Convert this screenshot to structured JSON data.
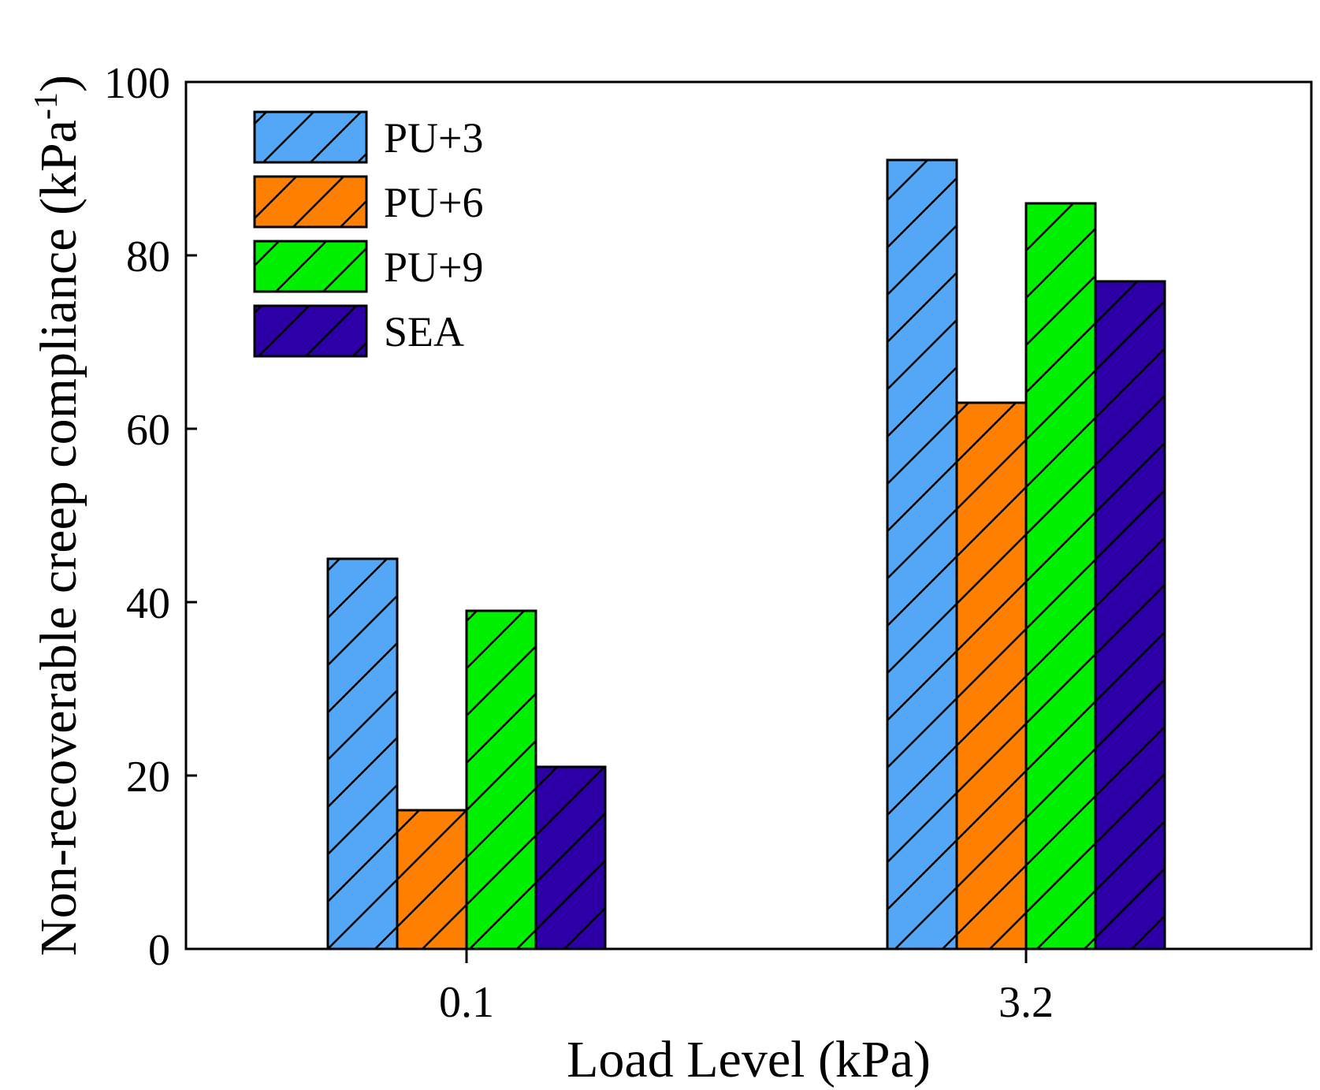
{
  "chart_data": {
    "type": "bar",
    "categories": [
      "0.1",
      "3.2"
    ],
    "series": [
      {
        "name": "PU+3",
        "values": [
          45,
          91
        ],
        "color": "#54a6f7"
      },
      {
        "name": "PU+6",
        "values": [
          16,
          63
        ],
        "color": "#ff8000"
      },
      {
        "name": "PU+9",
        "values": [
          39,
          86
        ],
        "color": "#00f000"
      },
      {
        "name": "SEA",
        "values": [
          21,
          77
        ],
        "color": "#2c00a6"
      }
    ],
    "title": "",
    "xlabel": "Load Level (kPa)",
    "ylabel": "Non-recoverable creep compliance (kPa",
    "ylabel_superscript": "-1",
    "ylabel_close": ")",
    "ylim": [
      0,
      100
    ],
    "yticks": [
      "0",
      "20",
      "40",
      "60",
      "80",
      "100"
    ],
    "ytick_values": [
      0,
      20,
      40,
      60,
      80,
      100
    ],
    "legend_position": "top-left",
    "bar_pattern": "diagonal-hatch"
  }
}
